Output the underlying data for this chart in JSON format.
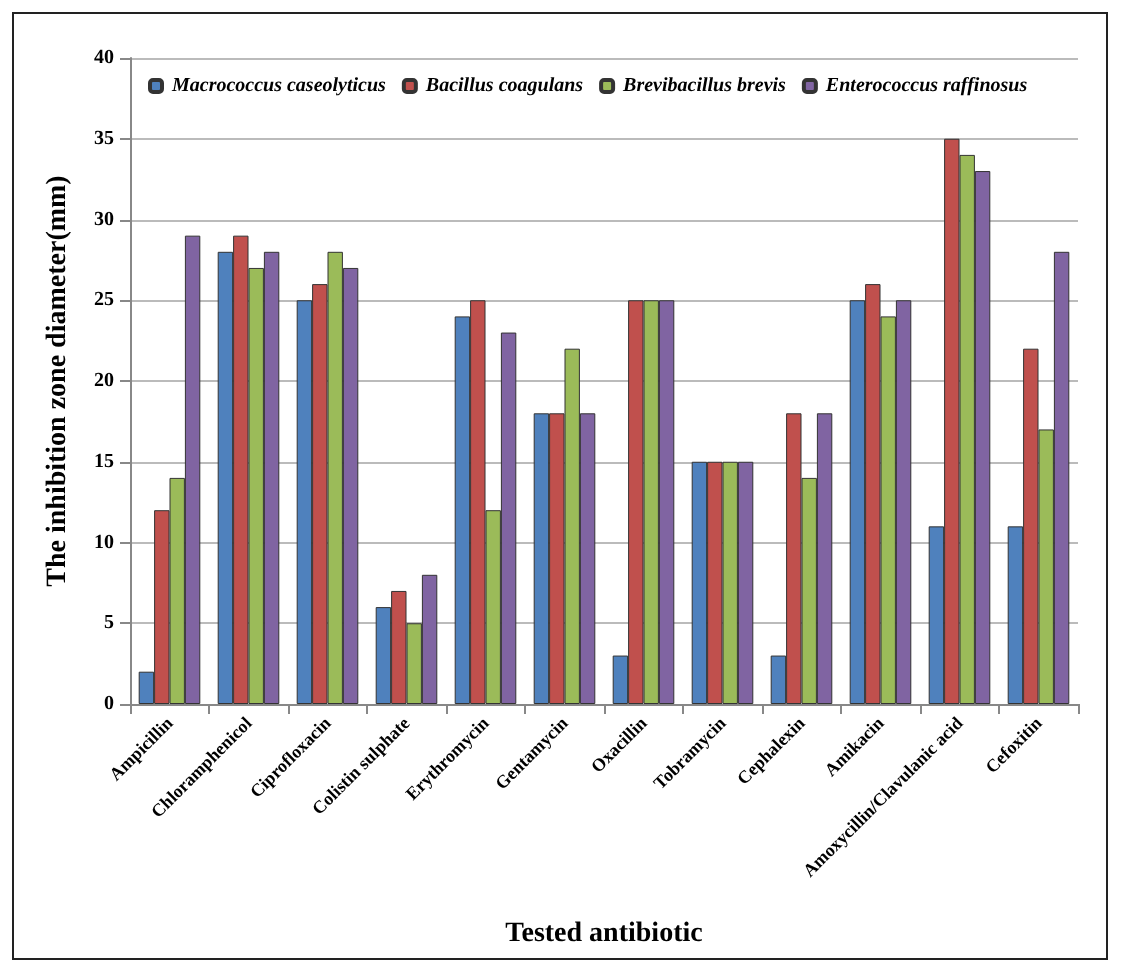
{
  "chart_data": {
    "type": "bar",
    "xlabel": "Tested antibiotic",
    "ylabel": "The inhibition zone diameter(mm)",
    "categories": [
      "Ampicillin",
      "Chloramphenicol",
      "Ciprofloxacin",
      "Colistin sulphate",
      "Erythromycin",
      "Gentamycin",
      "Oxacillin",
      "Tobramycin",
      "Cephalexin",
      "Amikacin",
      "Amoxycillin/Clavulanic acid",
      "Cefoxitin"
    ],
    "series": [
      {
        "name": "Macrococcus caseolyticus",
        "color": "#4f81bd",
        "values": [
          2,
          28,
          25,
          6,
          24,
          18,
          3,
          15,
          3,
          25,
          11,
          11
        ]
      },
      {
        "name": "Bacillus coagulans",
        "color": "#c0504d",
        "values": [
          12,
          29,
          26,
          7,
          25,
          18,
          25,
          15,
          18,
          26,
          35,
          22
        ]
      },
      {
        "name": "Brevibacillus brevis",
        "color": "#9bbb59",
        "values": [
          14,
          27,
          28,
          5,
          12,
          22,
          25,
          15,
          14,
          24,
          34,
          17
        ]
      },
      {
        "name": "Enterococcus raffinosus",
        "color": "#8064a2",
        "values": [
          29,
          28,
          27,
          8,
          23,
          18,
          25,
          15,
          18,
          25,
          33,
          28
        ]
      }
    ],
    "ylim": [
      0,
      40
    ],
    "yticks": [
      0,
      5,
      10,
      15,
      20,
      25,
      30,
      35,
      40
    ],
    "grid": "y",
    "legend": "top"
  }
}
